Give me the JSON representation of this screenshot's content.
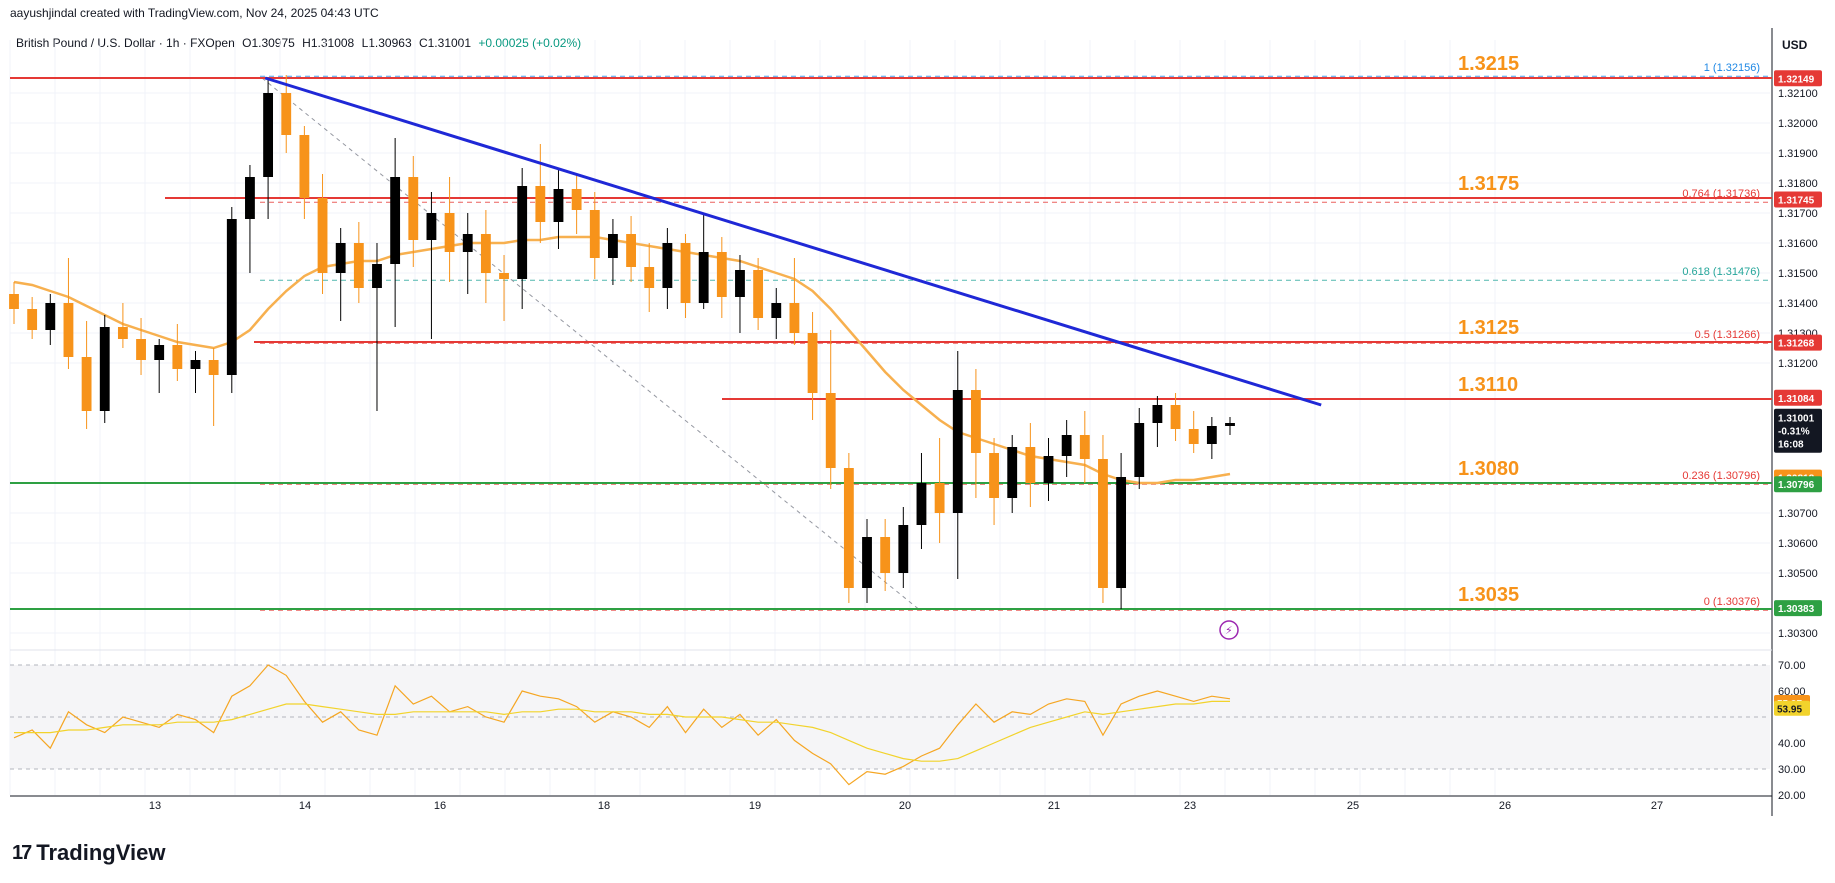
{
  "header": {
    "credit": "aayushjindal created with TradingView.com, Nov 24, 2025 04:43 UTC"
  },
  "symbol": {
    "name": "British Pound / U.S. Dollar · 1h · FXOpen",
    "open": "O1.30975",
    "high": "H1.31008",
    "low": "L1.30963",
    "close": "C1.31001",
    "change": "+0.00025 (+0.02%)"
  },
  "currency": "USD",
  "footer": {
    "brand": "TradingView"
  },
  "colors": {
    "candle_up": "#000000",
    "candle_down": "#f7931a",
    "ma": "#f7b04f",
    "trendline": "#1f28d6",
    "resistance": "#e53935",
    "support": "#2ea043",
    "level_label": "#f7931a",
    "rsi": "#f5a623",
    "rsi_ma": "#f2d32c"
  },
  "chart_data": [
    {
      "type": "candlestick",
      "pair": "GBP/USD",
      "timeframe": "1h",
      "y_range": [
        1.3025,
        1.3225
      ],
      "price_ticks": [
        "1.32100",
        "1.32000",
        "1.31900",
        "1.31800",
        "1.31700",
        "1.31600",
        "1.31500",
        "1.31400",
        "1.31300",
        "1.31200",
        "1.30700",
        "1.30600",
        "1.30500",
        "1.30300"
      ],
      "x_ticks": [
        "13",
        "14",
        "16",
        "18",
        "19",
        "20",
        "21",
        "23",
        "25",
        "26",
        "27"
      ],
      "levels": [
        {
          "label": "1.3215",
          "price": 1.3215,
          "color": "red"
        },
        {
          "label": "1.3175",
          "price": 1.3175,
          "color": "red"
        },
        {
          "label": "1.3125",
          "price": 1.3127,
          "color": "red"
        },
        {
          "label": "1.3110",
          "price": 1.3108,
          "color": "red"
        },
        {
          "label": "1.3080",
          "price": 1.308,
          "color": "green"
        },
        {
          "label": "1.3035",
          "price": 1.3038,
          "color": "green"
        }
      ],
      "fib_levels": [
        {
          "label": "1 (1.32156)",
          "price": 1.32156
        },
        {
          "label": "0.764 (1.31736)",
          "price": 1.31736
        },
        {
          "label": "0.618 (1.31476)",
          "price": 1.31476
        },
        {
          "label": "0.5 (1.31266)",
          "price": 1.31266
        },
        {
          "label": "0.236 (1.30796)",
          "price": 1.30796
        },
        {
          "label": "0 (1.30376)",
          "price": 1.30376
        }
      ],
      "price_tags": [
        {
          "label": "1.32149",
          "price": 1.32149,
          "color": "#e53935"
        },
        {
          "label": "1.31745",
          "price": 1.31745,
          "color": "#e53935"
        },
        {
          "label": "1.31268",
          "price": 1.31268,
          "color": "#e53935"
        },
        {
          "label": "1.31084",
          "price": 1.31084,
          "color": "#e53935"
        },
        {
          "label": "1.30818",
          "price": 1.30818,
          "color": "#f7931a"
        },
        {
          "label": "1.30796",
          "price": 1.30796,
          "color": "#2ea043"
        },
        {
          "label": "1.30383",
          "price": 1.30383,
          "color": "#2ea043"
        }
      ],
      "last_price": {
        "price": "1.31001",
        "change": "-0.31%",
        "countdown": "16:08"
      },
      "trendline": {
        "from": [
          1.3215,
          0.145
        ],
        "to": [
          1.3106,
          0.745
        ]
      },
      "candles": [
        [
          1.3143,
          1.3147,
          1.3133,
          1.3138
        ],
        [
          1.3138,
          1.3142,
          1.3128,
          1.3131
        ],
        [
          1.3131,
          1.3143,
          1.3126,
          1.314
        ],
        [
          1.314,
          1.3155,
          1.3118,
          1.3122
        ],
        [
          1.3122,
          1.3134,
          1.3098,
          1.3104
        ],
        [
          1.3104,
          1.3136,
          1.31,
          1.3132
        ],
        [
          1.3132,
          1.314,
          1.3125,
          1.3128
        ],
        [
          1.3128,
          1.3135,
          1.3116,
          1.3121
        ],
        [
          1.3121,
          1.3128,
          1.311,
          1.3126
        ],
        [
          1.3126,
          1.3133,
          1.3114,
          1.3118
        ],
        [
          1.3118,
          1.3124,
          1.311,
          1.3121
        ],
        [
          1.3121,
          1.3125,
          1.3099,
          1.3116
        ],
        [
          1.3116,
          1.3172,
          1.311,
          1.3168
        ],
        [
          1.3168,
          1.3186,
          1.315,
          1.3182
        ],
        [
          1.3182,
          1.3215,
          1.3168,
          1.321
        ],
        [
          1.321,
          1.3216,
          1.319,
          1.3196
        ],
        [
          1.3196,
          1.3199,
          1.3168,
          1.3175
        ],
        [
          1.3175,
          1.3183,
          1.3143,
          1.315
        ],
        [
          1.315,
          1.3165,
          1.3134,
          1.316
        ],
        [
          1.316,
          1.3167,
          1.314,
          1.3145
        ],
        [
          1.3145,
          1.316,
          1.3104,
          1.3153
        ],
        [
          1.3153,
          1.3195,
          1.3132,
          1.3182
        ],
        [
          1.3182,
          1.3189,
          1.3152,
          1.3161
        ],
        [
          1.3161,
          1.3177,
          1.3128,
          1.317
        ],
        [
          1.317,
          1.3182,
          1.3147,
          1.3157
        ],
        [
          1.3157,
          1.317,
          1.3143,
          1.3163
        ],
        [
          1.3163,
          1.3171,
          1.314,
          1.315
        ],
        [
          1.315,
          1.3156,
          1.3134,
          1.3148
        ],
        [
          1.3148,
          1.3185,
          1.3138,
          1.3179
        ],
        [
          1.3179,
          1.3193,
          1.316,
          1.3167
        ],
        [
          1.3167,
          1.3185,
          1.3158,
          1.3178
        ],
        [
          1.3178,
          1.3183,
          1.3163,
          1.3171
        ],
        [
          1.3171,
          1.3177,
          1.3148,
          1.3155
        ],
        [
          1.3155,
          1.3168,
          1.3146,
          1.3163
        ],
        [
          1.3163,
          1.3169,
          1.3147,
          1.3152
        ],
        [
          1.3152,
          1.316,
          1.3137,
          1.3145
        ],
        [
          1.3145,
          1.3165,
          1.3138,
          1.316
        ],
        [
          1.316,
          1.3163,
          1.3135,
          1.314
        ],
        [
          1.314,
          1.317,
          1.3138,
          1.3157
        ],
        [
          1.3157,
          1.3162,
          1.3135,
          1.3142
        ],
        [
          1.3142,
          1.3156,
          1.313,
          1.3151
        ],
        [
          1.3151,
          1.3155,
          1.3131,
          1.3135
        ],
        [
          1.3135,
          1.3145,
          1.3128,
          1.314
        ],
        [
          1.314,
          1.3155,
          1.3126,
          1.313
        ],
        [
          1.313,
          1.3137,
          1.3101,
          1.311
        ],
        [
          1.311,
          1.3131,
          1.3078,
          1.3085
        ],
        [
          1.3085,
          1.309,
          1.304,
          1.3045
        ],
        [
          1.3045,
          1.3068,
          1.304,
          1.3062
        ],
        [
          1.3062,
          1.3068,
          1.3044,
          1.305
        ],
        [
          1.305,
          1.3072,
          1.3045,
          1.3066
        ],
        [
          1.3066,
          1.309,
          1.3058,
          1.308
        ],
        [
          1.308,
          1.3095,
          1.306,
          1.307
        ],
        [
          1.307,
          1.3124,
          1.3048,
          1.3111
        ],
        [
          1.3111,
          1.3118,
          1.3075,
          1.309
        ],
        [
          1.309,
          1.3095,
          1.3066,
          1.3075
        ],
        [
          1.3075,
          1.3096,
          1.307,
          1.3092
        ],
        [
          1.3092,
          1.31,
          1.3072,
          1.308
        ],
        [
          1.308,
          1.3095,
          1.3074,
          1.3089
        ],
        [
          1.3089,
          1.3101,
          1.3082,
          1.3096
        ],
        [
          1.3096,
          1.3104,
          1.308,
          1.3088
        ],
        [
          1.3088,
          1.3096,
          1.304,
          1.3045
        ],
        [
          1.3045,
          1.309,
          1.3038,
          1.3082
        ],
        [
          1.3082,
          1.3105,
          1.3078,
          1.31
        ],
        [
          1.31,
          1.3109,
          1.3092,
          1.3106
        ],
        [
          1.3106,
          1.311,
          1.3094,
          1.3098
        ],
        [
          1.3098,
          1.3104,
          1.309,
          1.3093
        ],
        [
          1.3093,
          1.3102,
          1.3088,
          1.3099
        ],
        [
          1.3099,
          1.3102,
          1.3096,
          1.31
        ]
      ],
      "ma": [
        1.3147,
        1.3146,
        1.3144,
        1.3142,
        1.3139,
        1.3136,
        1.3133,
        1.3131,
        1.3129,
        1.3127,
        1.3126,
        1.3125,
        1.3127,
        1.3131,
        1.3138,
        1.3144,
        1.3149,
        1.3152,
        1.3153,
        1.3154,
        1.3154,
        1.3156,
        1.3157,
        1.3158,
        1.3159,
        1.316,
        1.316,
        1.316,
        1.3161,
        1.3161,
        1.3162,
        1.3162,
        1.3162,
        1.3161,
        1.316,
        1.3159,
        1.3158,
        1.3157,
        1.3156,
        1.3155,
        1.3154,
        1.3152,
        1.315,
        1.3148,
        1.3144,
        1.3138,
        1.3131,
        1.3124,
        1.3117,
        1.3111,
        1.3106,
        1.3101,
        1.3097,
        1.3095,
        1.3093,
        1.3091,
        1.3089,
        1.3088,
        1.3087,
        1.3086,
        1.3083,
        1.3081,
        1.308,
        1.308,
        1.3081,
        1.3081,
        1.3082,
        1.3083
      ]
    },
    {
      "type": "line",
      "indicator": "RSI",
      "y_range": [
        20,
        75
      ],
      "y_ticks": [
        "70.00",
        "60.00",
        "40.00",
        "30.00",
        "20.00"
      ],
      "rsi_value": "55.37",
      "rsi_ma_value": "53.95",
      "values": [
        42,
        45,
        38,
        52,
        47,
        44,
        50,
        48,
        46,
        51,
        49,
        44,
        58,
        62,
        70,
        66,
        56,
        48,
        52,
        45,
        43,
        62,
        55,
        58,
        52,
        54,
        50,
        48,
        60,
        58,
        57,
        54,
        48,
        52,
        50,
        46,
        54,
        44,
        53,
        46,
        51,
        43,
        49,
        41,
        36,
        32,
        24,
        29,
        28,
        31,
        35,
        38,
        47,
        55,
        48,
        52,
        51,
        55,
        57,
        56,
        43,
        55,
        58,
        60,
        58,
        56,
        58,
        57
      ],
      "ma_values": [
        44,
        44,
        44,
        45,
        45,
        46,
        47,
        47,
        47,
        48,
        48,
        48,
        49,
        51,
        53,
        55,
        55,
        54,
        53,
        52,
        51,
        51,
        52,
        52,
        52,
        52,
        52,
        51,
        52,
        52,
        53,
        53,
        52,
        52,
        52,
        51,
        51,
        50,
        50,
        50,
        49,
        48,
        48,
        47,
        46,
        44,
        41,
        38,
        36,
        34,
        33,
        33,
        34,
        37,
        40,
        43,
        46,
        48,
        50,
        52,
        51,
        52,
        53,
        54,
        55,
        55,
        56,
        56
      ]
    }
  ]
}
